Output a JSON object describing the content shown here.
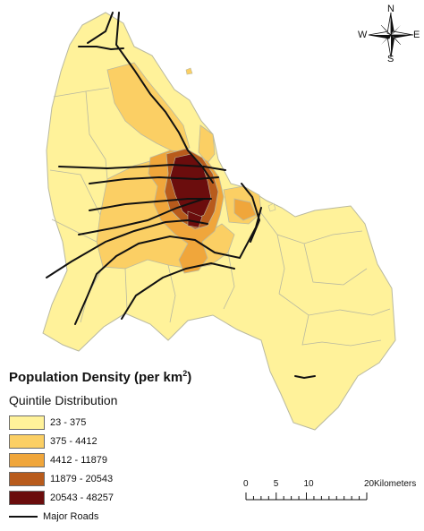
{
  "legend": {
    "title_main": "Population Density (per km",
    "title_sup": "2",
    "title_close": ")",
    "subtitle": "Quintile Distribution",
    "classes": [
      {
        "label": "23 - 375",
        "color": "#fff29a"
      },
      {
        "label": "375 - 4412",
        "color": "#fbcf64"
      },
      {
        "label": "4412 - 11879",
        "color": "#f0a63b"
      },
      {
        "label": "11879 - 20543",
        "color": "#b85b1c"
      },
      {
        "label": "20543 - 48257",
        "color": "#6b0d0d"
      }
    ],
    "road_label": "Major Roads"
  },
  "compass": {
    "n": "N",
    "s": "S",
    "e": "E",
    "w": "W"
  },
  "scale": {
    "ticks": [
      "0",
      "5",
      "10",
      "20"
    ],
    "unit": "Kilometers"
  },
  "colors": {
    "boundary": "#b9b9a0",
    "road": "#111111"
  }
}
